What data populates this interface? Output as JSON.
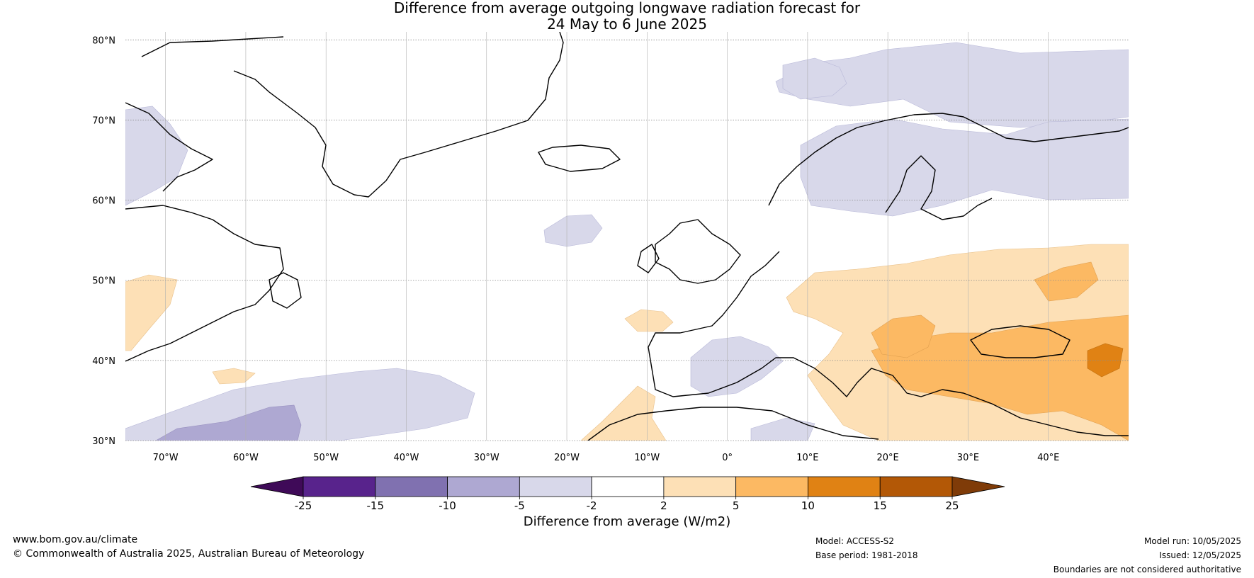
{
  "title": {
    "line1": "Difference from average outgoing longwave radiation forecast for",
    "line2": "24 May to 6 June 2025"
  },
  "map": {
    "lon_range": [
      -75,
      50
    ],
    "lat_range": [
      30,
      81
    ],
    "lat_ticks": [
      "80°N",
      "70°N",
      "60°N",
      "50°N",
      "40°N",
      "30°N"
    ],
    "lat_values": [
      80,
      70,
      60,
      50,
      40,
      30
    ],
    "lon_ticks": [
      "70°W",
      "60°W",
      "50°W",
      "40°W",
      "30°W",
      "20°W",
      "10°W",
      "0°",
      "10°E",
      "20°E",
      "30°E",
      "40°E"
    ],
    "lon_values": [
      -70,
      -60,
      -50,
      -40,
      -30,
      -20,
      -10,
      0,
      10,
      20,
      30,
      40
    ]
  },
  "colorbar": {
    "label": "Difference from average (W/m2)",
    "ticks": [
      "-25",
      "-15",
      "-10",
      "-5",
      "-2",
      "2",
      "5",
      "10",
      "15",
      "25"
    ],
    "colors": [
      "#3f0a58",
      "#58238c",
      "#8071b0",
      "#aea8d2",
      "#d8d8ea",
      "#ffffff",
      "#fde0b6",
      "#fcb963",
      "#e08214",
      "#b35806",
      "#7f3b08"
    ]
  },
  "footer": {
    "website": "www.bom.gov.au/climate",
    "copyright": "© Commonwealth of Australia 2025, Australian Bureau of Meteorology",
    "model": "Model: ACCESS-S2",
    "base_period": "Base period: 1981-2018",
    "model_run": "Model run: 10/05/2025",
    "issued": "Issued: 12/05/2025",
    "disclaimer": "Boundaries are not considered authoritative"
  }
}
